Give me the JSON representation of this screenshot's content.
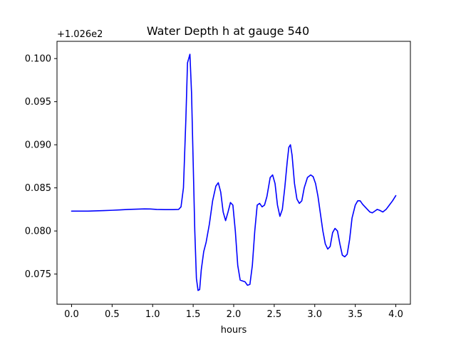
{
  "chart_data": {
    "type": "line",
    "title": "Water Depth h at gauge 540",
    "xlabel": "hours",
    "ylabel": "",
    "offset_label": "+1.026e2",
    "xlim": [
      -0.18,
      4.18
    ],
    "ylim": [
      0.0715,
      0.102
    ],
    "xticks": [
      0.0,
      0.5,
      1.0,
      1.5,
      2.0,
      2.5,
      3.0,
      3.5,
      4.0
    ],
    "xtick_labels": [
      "0.0",
      "0.5",
      "1.0",
      "1.5",
      "2.0",
      "2.5",
      "3.0",
      "3.5",
      "4.0"
    ],
    "yticks": [
      0.075,
      0.08,
      0.085,
      0.09,
      0.095,
      0.1
    ],
    "ytick_labels": [
      "0.075",
      "0.080",
      "0.085",
      "0.090",
      "0.095",
      "0.100"
    ],
    "grid": false,
    "series": [
      {
        "color": "#0000ff",
        "x": [
          0.0,
          0.1,
          0.2,
          0.3,
          0.4,
          0.5,
          0.6,
          0.7,
          0.8,
          0.9,
          0.97,
          1.05,
          1.15,
          1.25,
          1.32,
          1.35,
          1.38,
          1.41,
          1.43,
          1.46,
          1.48,
          1.5,
          1.52,
          1.54,
          1.56,
          1.58,
          1.6,
          1.63,
          1.66,
          1.7,
          1.74,
          1.78,
          1.81,
          1.84,
          1.87,
          1.9,
          1.93,
          1.96,
          1.99,
          2.02,
          2.05,
          2.08,
          2.11,
          2.14,
          2.17,
          2.2,
          2.23,
          2.26,
          2.29,
          2.32,
          2.35,
          2.38,
          2.41,
          2.45,
          2.48,
          2.51,
          2.54,
          2.57,
          2.6,
          2.63,
          2.66,
          2.68,
          2.7,
          2.72,
          2.75,
          2.78,
          2.81,
          2.84,
          2.87,
          2.91,
          2.95,
          2.98,
          3.01,
          3.04,
          3.07,
          3.1,
          3.13,
          3.16,
          3.19,
          3.22,
          3.25,
          3.28,
          3.31,
          3.34,
          3.37,
          3.4,
          3.43,
          3.46,
          3.5,
          3.53,
          3.56,
          3.59,
          3.62,
          3.65,
          3.68,
          3.71,
          3.74,
          3.77,
          3.8,
          3.84,
          3.88,
          3.92,
          3.96,
          4.0
        ],
        "y": [
          0.0823,
          0.0823,
          0.0823,
          0.08233,
          0.08236,
          0.0824,
          0.08245,
          0.0825,
          0.08253,
          0.08256,
          0.08255,
          0.0825,
          0.08248,
          0.08248,
          0.0825,
          0.0828,
          0.085,
          0.093,
          0.0995,
          0.1005,
          0.096,
          0.088,
          0.08,
          0.0745,
          0.0731,
          0.0732,
          0.0755,
          0.0776,
          0.0787,
          0.0808,
          0.0835,
          0.0852,
          0.0856,
          0.0845,
          0.0822,
          0.0812,
          0.0822,
          0.0833,
          0.083,
          0.08,
          0.076,
          0.0743,
          0.0742,
          0.0741,
          0.0737,
          0.0738,
          0.076,
          0.08,
          0.083,
          0.0832,
          0.0828,
          0.083,
          0.084,
          0.0862,
          0.0865,
          0.0855,
          0.083,
          0.0817,
          0.0825,
          0.085,
          0.088,
          0.0897,
          0.09,
          0.0888,
          0.0855,
          0.0837,
          0.0832,
          0.0835,
          0.085,
          0.0862,
          0.0865,
          0.0863,
          0.0855,
          0.084,
          0.082,
          0.08,
          0.0785,
          0.0779,
          0.0782,
          0.0798,
          0.0803,
          0.08,
          0.0785,
          0.0772,
          0.077,
          0.0773,
          0.079,
          0.0815,
          0.083,
          0.0835,
          0.0835,
          0.0831,
          0.0828,
          0.0825,
          0.0822,
          0.0821,
          0.0823,
          0.0825,
          0.0824,
          0.0822,
          0.0825,
          0.083,
          0.0835,
          0.0841
        ]
      }
    ]
  }
}
